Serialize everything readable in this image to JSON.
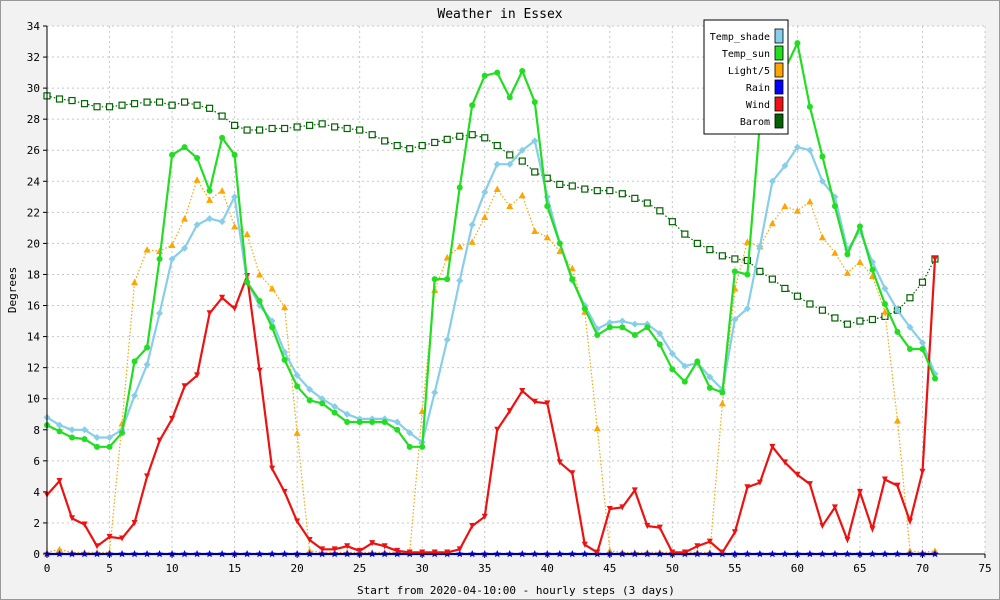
{
  "chart_data": {
    "type": "line",
    "title": "Weather in Essex",
    "xlabel": "Start from 2020-04-10:00 - hourly steps (3 days)",
    "ylabel": "Degrees",
    "xlim": [
      0,
      75
    ],
    "ylim": [
      0,
      34
    ],
    "x_ticks": [
      0,
      5,
      10,
      15,
      20,
      25,
      30,
      35,
      40,
      45,
      50,
      55,
      60,
      65,
      70,
      75
    ],
    "y_ticks": [
      0,
      2,
      4,
      6,
      8,
      10,
      12,
      14,
      16,
      18,
      20,
      22,
      24,
      26,
      28,
      30,
      32,
      34
    ],
    "grid": true,
    "legend_position": "top-right",
    "x": [
      0,
      1,
      2,
      3,
      4,
      5,
      6,
      7,
      8,
      9,
      10,
      11,
      12,
      13,
      14,
      15,
      16,
      17,
      18,
      19,
      20,
      21,
      22,
      23,
      24,
      25,
      26,
      27,
      28,
      29,
      30,
      31,
      32,
      33,
      34,
      35,
      36,
      37,
      38,
      39,
      40,
      41,
      42,
      43,
      44,
      45,
      46,
      47,
      48,
      49,
      50,
      51,
      52,
      53,
      54,
      55,
      56,
      57,
      58,
      59,
      60,
      61,
      62,
      63,
      64,
      65,
      66,
      67,
      68,
      69,
      70,
      71
    ],
    "series": [
      {
        "name": "Temp_shade",
        "color": "#87ceeb",
        "marker": "diamond",
        "line": "solid",
        "values": [
          8.8,
          8.3,
          8.0,
          8.0,
          7.5,
          7.5,
          8.0,
          10.2,
          12.2,
          15.5,
          19.0,
          19.7,
          21.2,
          21.6,
          21.4,
          23.0,
          17.5,
          16.0,
          15.0,
          13.0,
          11.5,
          10.6,
          10.0,
          9.5,
          9.0,
          8.7,
          8.7,
          8.7,
          8.5,
          7.8,
          7.2,
          10.4,
          13.8,
          17.6,
          21.2,
          23.3,
          25.1,
          25.1,
          26.0,
          26.6,
          23.0,
          20.0,
          17.6,
          16.0,
          14.5,
          14.9,
          15.0,
          14.8,
          14.8,
          14.2,
          12.9,
          12.1,
          12.3,
          11.4,
          10.6,
          15.1,
          15.8,
          19.8,
          24.0,
          25.0,
          26.2,
          26.0,
          24.0,
          23.0,
          19.6,
          20.8,
          18.8,
          17.1,
          15.7,
          14.6,
          13.6,
          11.6
        ]
      },
      {
        "name": "Temp_sun",
        "color": "#22dd22",
        "marker": "circle",
        "line": "solid",
        "values": [
          8.3,
          7.9,
          7.5,
          7.4,
          6.9,
          6.9,
          7.8,
          12.4,
          13.3,
          19.0,
          25.7,
          26.2,
          25.5,
          23.4,
          26.8,
          25.7,
          17.5,
          16.3,
          14.6,
          12.5,
          10.8,
          9.9,
          9.7,
          9.1,
          8.5,
          8.5,
          8.5,
          8.5,
          8.0,
          6.9,
          6.9,
          17.7,
          17.7,
          23.6,
          28.9,
          30.8,
          31.0,
          29.4,
          31.1,
          29.1,
          22.4,
          20.0,
          17.7,
          15.8,
          14.1,
          14.6,
          14.6,
          14.1,
          14.6,
          13.5,
          11.9,
          11.1,
          12.4,
          10.7,
          10.4,
          18.2,
          18.0,
          27.7,
          29.5,
          31.2,
          32.9,
          28.8,
          25.6,
          22.4,
          19.3,
          21.1,
          18.3,
          16.1,
          14.3,
          13.2,
          13.2,
          11.3
        ]
      },
      {
        "name": "Light/5",
        "color": "#ffa500",
        "marker": "triangle",
        "line": "dotted",
        "values": [
          0.1,
          0.3,
          0.1,
          0.1,
          0.1,
          0.1,
          8.4,
          17.5,
          19.6,
          19.5,
          19.9,
          21.6,
          24.1,
          22.8,
          23.4,
          21.1,
          20.6,
          18.0,
          17.1,
          15.9,
          7.8,
          0.2,
          0.1,
          0.1,
          0.1,
          0.1,
          0.1,
          0.1,
          0.1,
          0.1,
          9.2,
          17.0,
          19.1,
          19.8,
          20.1,
          21.7,
          23.5,
          22.4,
          23.1,
          20.8,
          20.4,
          19.5,
          18.4,
          15.6,
          8.1,
          0.2,
          0.1,
          0.1,
          0.1,
          0.1,
          0.1,
          0.1,
          0.1,
          0.1,
          9.7,
          17.1,
          20.1,
          19.8,
          21.3,
          22.4,
          22.1,
          22.7,
          20.4,
          19.4,
          18.1,
          18.8,
          17.9,
          15.6,
          8.6,
          0.2,
          0.1,
          0.2
        ]
      },
      {
        "name": "Rain",
        "color": "#0000ff",
        "marker": "star",
        "line": "solid",
        "values": [
          0,
          0,
          0,
          0,
          0,
          0,
          0,
          0,
          0,
          0,
          0,
          0,
          0,
          0,
          0,
          0,
          0,
          0,
          0,
          0,
          0,
          0,
          0,
          0,
          0,
          0,
          0,
          0,
          0,
          0,
          0,
          0,
          0,
          0,
          0,
          0,
          0,
          0,
          0,
          0,
          0,
          0,
          0,
          0,
          0,
          0,
          0,
          0,
          0,
          0,
          0,
          0,
          0,
          0,
          0,
          0,
          0,
          0,
          0,
          0,
          0,
          0,
          0,
          0,
          0,
          0,
          0,
          0,
          0,
          0,
          0,
          0
        ]
      },
      {
        "name": "Wind",
        "color": "#ee1111",
        "marker": "triangle-down",
        "line": "solid",
        "values": [
          3.8,
          4.7,
          2.3,
          1.9,
          0.5,
          1.1,
          1.0,
          2.0,
          5.0,
          7.3,
          8.7,
          10.8,
          11.5,
          15.5,
          16.5,
          15.8,
          17.9,
          11.8,
          5.5,
          4.0,
          2.1,
          0.9,
          0.3,
          0.3,
          0.5,
          0.2,
          0.7,
          0.5,
          0.2,
          0.1,
          0.1,
          0.1,
          0.1,
          0.3,
          1.8,
          2.4,
          8.0,
          9.2,
          10.5,
          9.8,
          9.7,
          5.9,
          5.2,
          0.6,
          0.1,
          2.9,
          3.0,
          4.1,
          1.8,
          1.7,
          0.1,
          0.1,
          0.5,
          0.8,
          0.1,
          1.4,
          4.3,
          4.6,
          6.9,
          5.9,
          5.1,
          4.5,
          1.8,
          3.0,
          0.9,
          4.0,
          1.6,
          4.8,
          4.4,
          2.1,
          5.3,
          19.0
        ]
      },
      {
        "name": "Barom",
        "color": "#006400",
        "marker": "square",
        "line": "dotted",
        "values": [
          29.5,
          29.3,
          29.2,
          29.0,
          28.8,
          28.8,
          28.9,
          29.0,
          29.1,
          29.1,
          28.9,
          29.1,
          28.9,
          28.7,
          28.2,
          27.6,
          27.3,
          27.3,
          27.4,
          27.4,
          27.5,
          27.6,
          27.7,
          27.5,
          27.4,
          27.3,
          27.0,
          26.6,
          26.3,
          26.1,
          26.3,
          26.5,
          26.7,
          26.9,
          27.0,
          26.8,
          26.3,
          25.7,
          25.3,
          24.6,
          24.2,
          23.8,
          23.7,
          23.5,
          23.4,
          23.4,
          23.2,
          22.9,
          22.6,
          22.1,
          21.4,
          20.6,
          20.0,
          19.6,
          19.2,
          19.0,
          18.9,
          18.2,
          17.7,
          17.1,
          16.6,
          16.1,
          15.7,
          15.2,
          14.8,
          15.0,
          15.1,
          15.3,
          15.7,
          16.5,
          17.5,
          19.0
        ]
      }
    ]
  }
}
